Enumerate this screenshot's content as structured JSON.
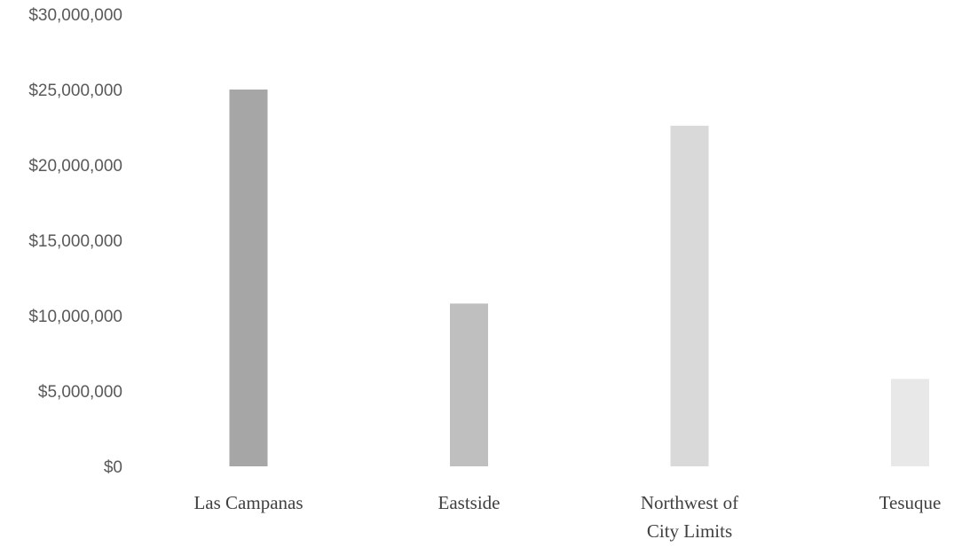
{
  "chart_data": {
    "type": "bar",
    "title": "",
    "xlabel": "",
    "ylabel": "",
    "categories": [
      [
        "Las Campanas"
      ],
      [
        "Eastside"
      ],
      [
        "Northwest of",
        "City Limits"
      ],
      [
        "Tesuque"
      ]
    ],
    "values": [
      25000000,
      10800000,
      22600000,
      5800000
    ],
    "bar_colors": [
      "#a6a6a6",
      "#bfbfbf",
      "#d9d9d9",
      "#e8e8e8"
    ],
    "ylim": [
      0,
      30000000
    ],
    "yticks": [
      0,
      5000000,
      10000000,
      15000000,
      20000000,
      25000000,
      30000000
    ],
    "ytick_labels": [
      "$0",
      "$5,000,000",
      "$10,000,000",
      "$15,000,000",
      "$20,000,000",
      "$25,000,000",
      "$30,000,000"
    ],
    "grid": false,
    "legend": "none"
  }
}
